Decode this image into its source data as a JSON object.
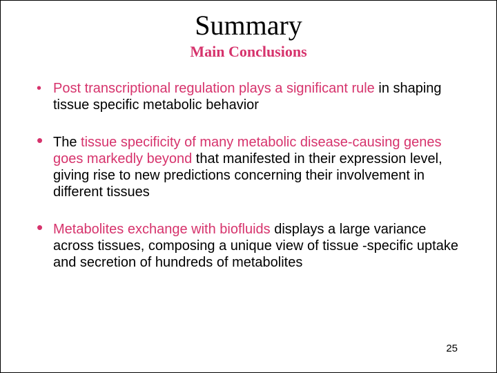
{
  "title": "Summary",
  "subtitle": "Main Conclusions",
  "page_number": "25",
  "colors": {
    "accent": "#d6336c",
    "text": "#000000",
    "background": "#ffffff"
  },
  "typography": {
    "title_font": "Comic Sans MS",
    "title_size_pt": 40,
    "subtitle_font": "Comic Sans MS",
    "subtitle_size_pt": 22,
    "body_font": "Arial",
    "body_size_pt": 20
  },
  "bullets": [
    {
      "marker": "•",
      "marker_style": "open",
      "segments": [
        {
          "text": "Post transcriptional regulation plays a significant rule",
          "hl": true
        },
        {
          "text": " in shaping tissue specific metabolic behavior",
          "hl": false
        }
      ]
    },
    {
      "marker": "•",
      "marker_style": "solid",
      "segments": [
        {
          "text": "The ",
          "hl": false
        },
        {
          "text": "tissue specificity of many metabolic disease-causing genes goes markedly beyond",
          "hl": true
        },
        {
          "text": " that manifested in their expression level, giving rise to new predictions concerning their involvement in different tissues",
          "hl": false
        }
      ]
    },
    {
      "marker": "•",
      "marker_style": "solid",
      "segments": [
        {
          "text": "Metabolites exchange with biofluids",
          "hl": true
        },
        {
          "text": " displays a large variance across tissues, composing a unique view of tissue -specific uptake and secretion of hundreds of metabolites",
          "hl": false
        }
      ]
    }
  ]
}
